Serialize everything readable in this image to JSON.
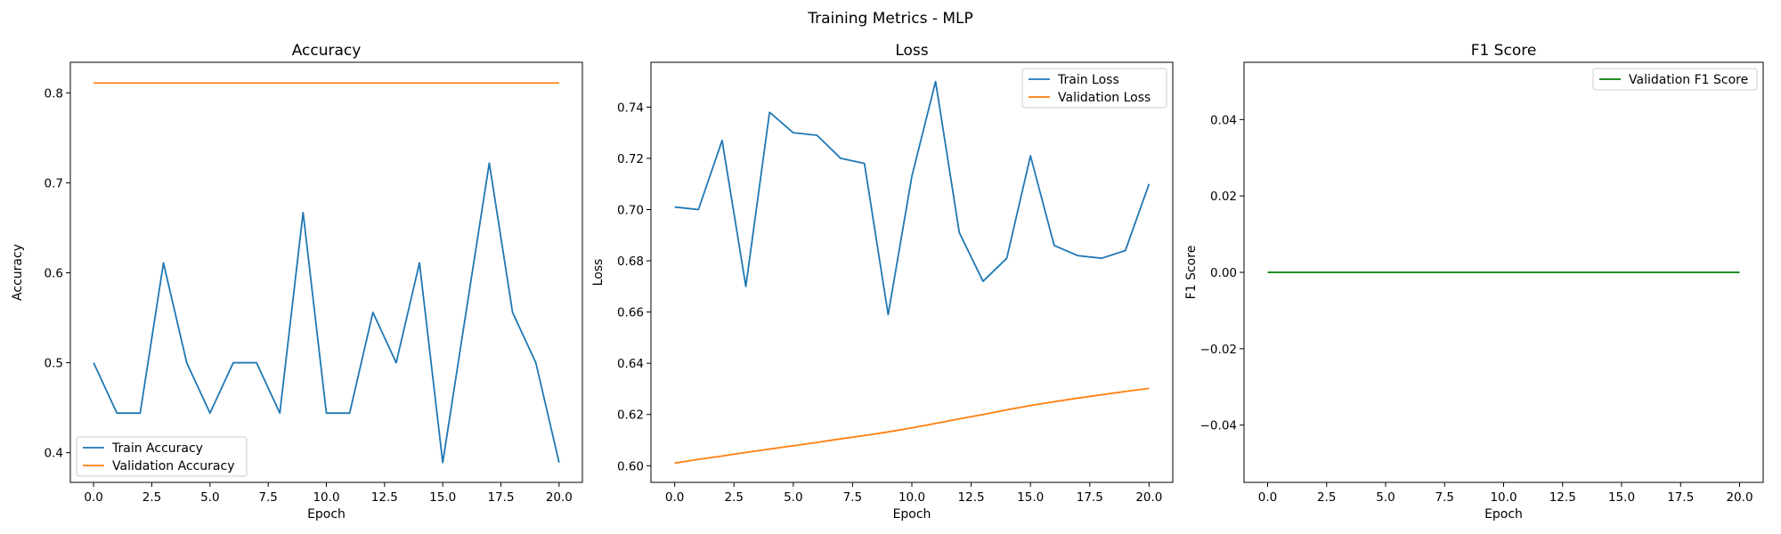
{
  "figure": {
    "suptitle": "Training Metrics - MLP"
  },
  "colors": {
    "train": "#1f77b4",
    "validation": "#ff7f0e",
    "f1": "#008000"
  },
  "chart_data": [
    {
      "type": "line",
      "title": "Accuracy",
      "xlabel": "Epoch",
      "ylabel": "Accuracy",
      "xlim": [
        -1,
        21
      ],
      "ylim": [
        0.367,
        0.834
      ],
      "xticks": [
        0,
        2.5,
        5,
        7.5,
        10,
        12.5,
        15,
        17.5,
        20
      ],
      "xtick_labels": [
        "0.0",
        "2.5",
        "5.0",
        "7.5",
        "10.0",
        "12.5",
        "15.0",
        "17.5",
        "20.0"
      ],
      "yticks": [
        0.4,
        0.5,
        0.6,
        0.7,
        0.8
      ],
      "ytick_labels": [
        "0.4",
        "0.5",
        "0.6",
        "0.7",
        "0.8"
      ],
      "legend_position": "lower-left",
      "x": [
        0,
        1,
        2,
        3,
        4,
        5,
        6,
        7,
        8,
        9,
        10,
        11,
        12,
        13,
        14,
        15,
        16,
        17,
        18,
        19,
        20
      ],
      "series": [
        {
          "name": "Train Accuracy",
          "color": "#1f77b4",
          "values": [
            0.5,
            0.444,
            0.444,
            0.611,
            0.5,
            0.444,
            0.5,
            0.5,
            0.444,
            0.667,
            0.444,
            0.444,
            0.556,
            0.5,
            0.611,
            0.389,
            0.556,
            0.722,
            0.556,
            0.5,
            0.389
          ]
        },
        {
          "name": "Validation Accuracy",
          "color": "#ff7f0e",
          "values": [
            0.811,
            0.811,
            0.811,
            0.811,
            0.811,
            0.811,
            0.811,
            0.811,
            0.811,
            0.811,
            0.811,
            0.811,
            0.811,
            0.811,
            0.811,
            0.811,
            0.811,
            0.811,
            0.811,
            0.811,
            0.811
          ]
        }
      ]
    },
    {
      "type": "line",
      "title": "Loss",
      "xlabel": "Epoch",
      "ylabel": "Loss",
      "xlim": [
        -1,
        21
      ],
      "ylim": [
        0.5935,
        0.7575
      ],
      "xticks": [
        0,
        2.5,
        5,
        7.5,
        10,
        12.5,
        15,
        17.5,
        20
      ],
      "xtick_labels": [
        "0.0",
        "2.5",
        "5.0",
        "7.5",
        "10.0",
        "12.5",
        "15.0",
        "17.5",
        "20.0"
      ],
      "yticks": [
        0.6,
        0.62,
        0.64,
        0.66,
        0.68,
        0.7,
        0.72,
        0.74
      ],
      "ytick_labels": [
        "0.60",
        "0.62",
        "0.64",
        "0.66",
        "0.68",
        "0.70",
        "0.72",
        "0.74"
      ],
      "legend_position": "upper-right",
      "x": [
        0,
        1,
        2,
        3,
        4,
        5,
        6,
        7,
        8,
        9,
        10,
        11,
        12,
        13,
        14,
        15,
        16,
        17,
        18,
        19,
        20
      ],
      "series": [
        {
          "name": "Train Loss",
          "color": "#1f77b4",
          "values": [
            0.701,
            0.7,
            0.727,
            0.67,
            0.738,
            0.73,
            0.729,
            0.72,
            0.718,
            0.659,
            0.713,
            0.75,
            0.691,
            0.672,
            0.681,
            0.721,
            0.686,
            0.682,
            0.681,
            0.684,
            0.71
          ]
        },
        {
          "name": "Validation Loss",
          "color": "#ff7f0e",
          "values": [
            0.601,
            0.6025,
            0.6038,
            0.6052,
            0.6065,
            0.6078,
            0.6091,
            0.6105,
            0.6118,
            0.6132,
            0.6148,
            0.6165,
            0.6183,
            0.62,
            0.6218,
            0.6235,
            0.625,
            0.6264,
            0.6277,
            0.629,
            0.6302
          ]
        }
      ]
    },
    {
      "type": "line",
      "title": "F1 Score",
      "xlabel": "Epoch",
      "ylabel": "F1 Score",
      "xlim": [
        -1,
        21
      ],
      "ylim": [
        -0.055,
        0.055
      ],
      "xticks": [
        0,
        2.5,
        5,
        7.5,
        10,
        12.5,
        15,
        17.5,
        20
      ],
      "xtick_labels": [
        "0.0",
        "2.5",
        "5.0",
        "7.5",
        "10.0",
        "12.5",
        "15.0",
        "17.5",
        "20.0"
      ],
      "yticks": [
        -0.04,
        -0.02,
        0.0,
        0.02,
        0.04
      ],
      "ytick_labels": [
        "−0.04",
        "−0.02",
        "0.00",
        "0.02",
        "0.04"
      ],
      "legend_position": "upper-right",
      "x": [
        0,
        1,
        2,
        3,
        4,
        5,
        6,
        7,
        8,
        9,
        10,
        11,
        12,
        13,
        14,
        15,
        16,
        17,
        18,
        19,
        20
      ],
      "series": [
        {
          "name": "Validation F1 Score",
          "color": "#008000",
          "values": [
            0,
            0,
            0,
            0,
            0,
            0,
            0,
            0,
            0,
            0,
            0,
            0,
            0,
            0,
            0,
            0,
            0,
            0,
            0,
            0,
            0
          ]
        }
      ]
    }
  ]
}
